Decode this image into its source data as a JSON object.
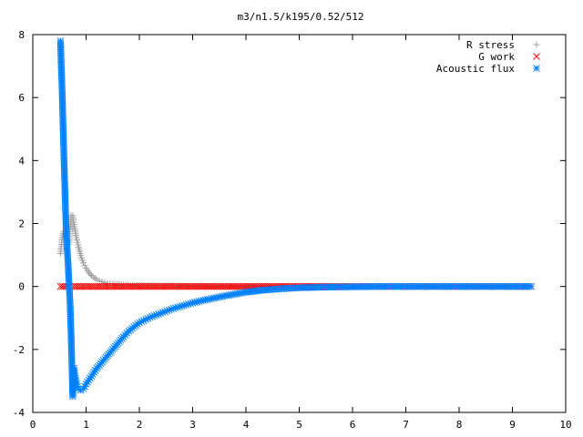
{
  "chart_data": {
    "type": "scatter",
    "title": "m3/n1.5/k195/0.52/512",
    "xlabel": "",
    "ylabel": "",
    "xlim": [
      0,
      10
    ],
    "ylim": [
      -4,
      8
    ],
    "xticks": [
      0,
      1,
      2,
      3,
      4,
      5,
      6,
      7,
      8,
      9,
      10
    ],
    "yticks": [
      -4,
      -2,
      0,
      2,
      4,
      6,
      8
    ],
    "grid": false,
    "legend_position": "top-right",
    "series": [
      {
        "name": "R stress",
        "marker": "plus",
        "color": "#a0a0a0",
        "points": [
          [
            0.52,
            1.05
          ],
          [
            0.55,
            1.55
          ],
          [
            0.58,
            1.75
          ],
          [
            0.61,
            1.65
          ],
          [
            0.65,
            1.45
          ],
          [
            0.68,
            1.35
          ],
          [
            0.72,
            2.25
          ],
          [
            0.75,
            2.25
          ],
          [
            0.78,
            1.9
          ],
          [
            0.82,
            1.55
          ],
          [
            0.86,
            1.25
          ],
          [
            0.9,
            0.98
          ],
          [
            0.95,
            0.75
          ],
          [
            1.0,
            0.58
          ],
          [
            1.05,
            0.45
          ],
          [
            1.1,
            0.35
          ],
          [
            1.2,
            0.22
          ],
          [
            1.3,
            0.15
          ],
          [
            1.4,
            0.1
          ],
          [
            1.5,
            0.08
          ],
          [
            1.7,
            0.05
          ],
          [
            2.0,
            0.03
          ],
          [
            2.5,
            0.02
          ],
          [
            3.0,
            0.01
          ],
          [
            3.5,
            0.0
          ],
          [
            4.0,
            0.0
          ],
          [
            5.0,
            0.0
          ],
          [
            6.0,
            0.0
          ],
          [
            7.0,
            0.0
          ],
          [
            8.0,
            0.0
          ],
          [
            9.35,
            0.0
          ]
        ]
      },
      {
        "name": "G work",
        "marker": "cross",
        "color": "#ff0000",
        "points": [
          [
            0.52,
            0.0
          ],
          [
            0.6,
            0.0
          ],
          [
            0.7,
            0.0
          ],
          [
            0.8,
            0.0
          ],
          [
            1.0,
            0.0
          ],
          [
            1.5,
            0.0
          ],
          [
            2.0,
            0.0
          ],
          [
            2.5,
            0.0
          ],
          [
            3.0,
            0.0
          ],
          [
            3.5,
            0.0
          ],
          [
            4.0,
            0.0
          ],
          [
            4.5,
            0.0
          ],
          [
            5.0,
            0.0
          ],
          [
            5.5,
            0.0
          ],
          [
            6.0,
            0.0
          ],
          [
            6.5,
            0.0
          ],
          [
            7.0,
            0.0
          ],
          [
            8.0,
            0.0
          ],
          [
            9.0,
            0.0
          ],
          [
            9.35,
            0.0
          ]
        ]
      },
      {
        "name": "Acoustic flux",
        "marker": "star",
        "color": "#0080ff",
        "points": [
          [
            0.52,
            7.8
          ],
          [
            0.53,
            7.2
          ],
          [
            0.55,
            6.25
          ],
          [
            0.57,
            5.0
          ],
          [
            0.59,
            3.8
          ],
          [
            0.61,
            2.65
          ],
          [
            0.63,
            1.6
          ],
          [
            0.66,
            0.8
          ],
          [
            0.68,
            0.1
          ],
          [
            0.7,
            -0.55
          ],
          [
            0.72,
            -1.6
          ],
          [
            0.75,
            -3.5
          ],
          [
            0.77,
            -2.6
          ],
          [
            0.8,
            -2.9
          ],
          [
            0.82,
            -3.1
          ],
          [
            0.85,
            -3.25
          ],
          [
            0.9,
            -3.3
          ],
          [
            0.95,
            -3.25
          ],
          [
            1.0,
            -3.1
          ],
          [
            1.1,
            -2.85
          ],
          [
            1.2,
            -2.6
          ],
          [
            1.3,
            -2.4
          ],
          [
            1.4,
            -2.2
          ],
          [
            1.5,
            -2.0
          ],
          [
            1.6,
            -1.8
          ],
          [
            1.7,
            -1.6
          ],
          [
            1.8,
            -1.42
          ],
          [
            1.9,
            -1.28
          ],
          [
            2.0,
            -1.15
          ],
          [
            2.2,
            -0.98
          ],
          [
            2.4,
            -0.85
          ],
          [
            2.6,
            -0.72
          ],
          [
            2.8,
            -0.62
          ],
          [
            3.0,
            -0.52
          ],
          [
            3.2,
            -0.44
          ],
          [
            3.4,
            -0.37
          ],
          [
            3.6,
            -0.3
          ],
          [
            3.8,
            -0.24
          ],
          [
            4.0,
            -0.18
          ],
          [
            4.3,
            -0.12
          ],
          [
            4.6,
            -0.08
          ],
          [
            5.0,
            -0.04
          ],
          [
            5.5,
            -0.02
          ],
          [
            6.0,
            -0.01
          ],
          [
            6.5,
            0.0
          ],
          [
            7.0,
            0.0
          ],
          [
            7.5,
            0.0
          ],
          [
            8.0,
            0.0
          ],
          [
            8.5,
            0.0
          ],
          [
            9.0,
            0.0
          ],
          [
            9.35,
            0.0
          ]
        ]
      }
    ]
  }
}
